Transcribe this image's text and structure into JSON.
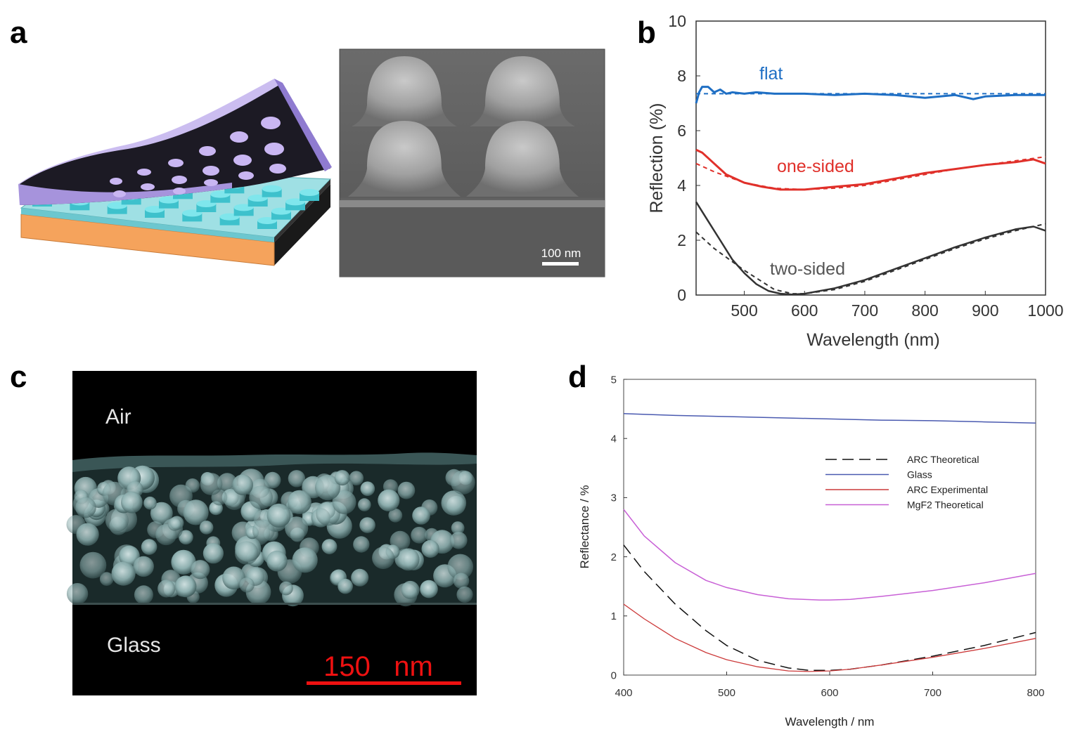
{
  "panels": {
    "a": "a",
    "b": "b",
    "c": "c",
    "d": "d"
  },
  "sem_a": {
    "scalebar": "100 nm"
  },
  "sem_c": {
    "top_label": "Air",
    "bottom_label": "Glass",
    "scalebar": "150   nm"
  },
  "colors": {
    "purple_film": "#b7a4e6",
    "cyan_pillar": "#4dd6e0",
    "orange_substrate": "#f5a35c",
    "flat": "#1f6fc4",
    "one_sided": "#e0302a",
    "two_sided": "#333333",
    "glass": "#4a5ab0",
    "arc_exp": "#cc3a3a",
    "mgf2": "#c860d6",
    "arc_theo": "#111111"
  },
  "chart_data": [
    {
      "type": "line",
      "panel": "b",
      "xlabel": "Wavelength (nm)",
      "ylabel": "Reflection (%)",
      "xlim": [
        420,
        1000
      ],
      "ylim": [
        0,
        10
      ],
      "xticks": [
        500,
        600,
        700,
        800,
        900,
        1000
      ],
      "yticks": [
        0,
        2,
        4,
        6,
        8,
        10
      ],
      "series": [
        {
          "name": "flat",
          "style": "solid",
          "x": [
            420,
            425,
            430,
            440,
            450,
            460,
            470,
            480,
            500,
            520,
            550,
            600,
            650,
            700,
            750,
            800,
            850,
            880,
            900,
            950,
            1000
          ],
          "y": [
            7.0,
            7.4,
            7.6,
            7.6,
            7.4,
            7.5,
            7.35,
            7.4,
            7.35,
            7.4,
            7.35,
            7.35,
            7.3,
            7.35,
            7.3,
            7.2,
            7.3,
            7.15,
            7.25,
            7.3,
            7.3
          ]
        },
        {
          "name": "",
          "style": "dashed",
          "x": [
            420,
            500,
            600,
            700,
            800,
            900,
            1000
          ],
          "y": [
            7.35,
            7.35,
            7.35,
            7.35,
            7.35,
            7.35,
            7.35
          ]
        },
        {
          "name": "one-sided",
          "style": "solid",
          "x": [
            420,
            430,
            450,
            470,
            500,
            530,
            560,
            600,
            650,
            700,
            750,
            800,
            850,
            900,
            950,
            980,
            1000
          ],
          "y": [
            5.3,
            5.2,
            4.8,
            4.4,
            4.1,
            3.95,
            3.85,
            3.85,
            3.95,
            4.05,
            4.25,
            4.45,
            4.6,
            4.75,
            4.85,
            4.95,
            4.8
          ]
        },
        {
          "name": "",
          "style": "dashed",
          "x": [
            420,
            450,
            500,
            550,
            600,
            650,
            700,
            750,
            800,
            850,
            900,
            950,
            1000
          ],
          "y": [
            4.8,
            4.5,
            4.1,
            3.9,
            3.85,
            3.9,
            4.0,
            4.2,
            4.4,
            4.6,
            4.75,
            4.9,
            5.05
          ]
        },
        {
          "name": "two-sided",
          "style": "solid",
          "x": [
            420,
            440,
            460,
            480,
            500,
            520,
            540,
            560,
            580,
            600,
            650,
            700,
            750,
            800,
            850,
            900,
            950,
            980,
            1000
          ],
          "y": [
            3.4,
            2.7,
            2.0,
            1.3,
            0.8,
            0.4,
            0.15,
            0.05,
            0.02,
            0.05,
            0.25,
            0.55,
            0.95,
            1.35,
            1.75,
            2.1,
            2.4,
            2.5,
            2.35
          ]
        },
        {
          "name": "",
          "style": "dashed",
          "x": [
            420,
            450,
            500,
            550,
            580,
            600,
            650,
            700,
            750,
            800,
            850,
            900,
            950,
            1000
          ],
          "y": [
            2.3,
            1.7,
            0.9,
            0.2,
            0.05,
            0.05,
            0.2,
            0.5,
            0.9,
            1.3,
            1.7,
            2.05,
            2.35,
            2.6
          ]
        }
      ],
      "annotations": [
        "flat",
        "one-sided",
        "two-sided"
      ]
    },
    {
      "type": "line",
      "panel": "d",
      "xlabel": "Wavelength / nm",
      "ylabel": "Reflectance / %",
      "xlim": [
        400,
        800
      ],
      "ylim": [
        0,
        5
      ],
      "xticks": [
        400,
        500,
        600,
        700,
        800
      ],
      "yticks": [
        0,
        1,
        2,
        3,
        4,
        5
      ],
      "legend": "center-right",
      "series": [
        {
          "name": "ARC Theoretical",
          "style": "dashed",
          "x": [
            400,
            420,
            450,
            480,
            500,
            530,
            560,
            580,
            600,
            620,
            650,
            700,
            750,
            800
          ],
          "y": [
            2.2,
            1.75,
            1.2,
            0.75,
            0.5,
            0.25,
            0.12,
            0.08,
            0.08,
            0.1,
            0.17,
            0.32,
            0.5,
            0.72
          ]
        },
        {
          "name": "Glass",
          "style": "solid",
          "x": [
            400,
            450,
            500,
            550,
            600,
            650,
            700,
            750,
            800
          ],
          "y": [
            4.42,
            4.39,
            4.37,
            4.35,
            4.33,
            4.31,
            4.3,
            4.28,
            4.26
          ]
        },
        {
          "name": "ARC Experimental",
          "style": "solid",
          "x": [
            400,
            420,
            450,
            480,
            500,
            530,
            560,
            580,
            600,
            620,
            650,
            700,
            750,
            800
          ],
          "y": [
            1.2,
            0.95,
            0.62,
            0.38,
            0.26,
            0.14,
            0.07,
            0.06,
            0.07,
            0.1,
            0.17,
            0.3,
            0.45,
            0.62
          ]
        },
        {
          "name": "MgF2 Theoretical",
          "style": "solid",
          "x": [
            400,
            420,
            450,
            480,
            500,
            530,
            560,
            590,
            600,
            620,
            650,
            700,
            750,
            800
          ],
          "y": [
            2.8,
            2.35,
            1.9,
            1.6,
            1.48,
            1.36,
            1.29,
            1.27,
            1.27,
            1.28,
            1.33,
            1.43,
            1.56,
            1.72
          ]
        }
      ]
    }
  ]
}
